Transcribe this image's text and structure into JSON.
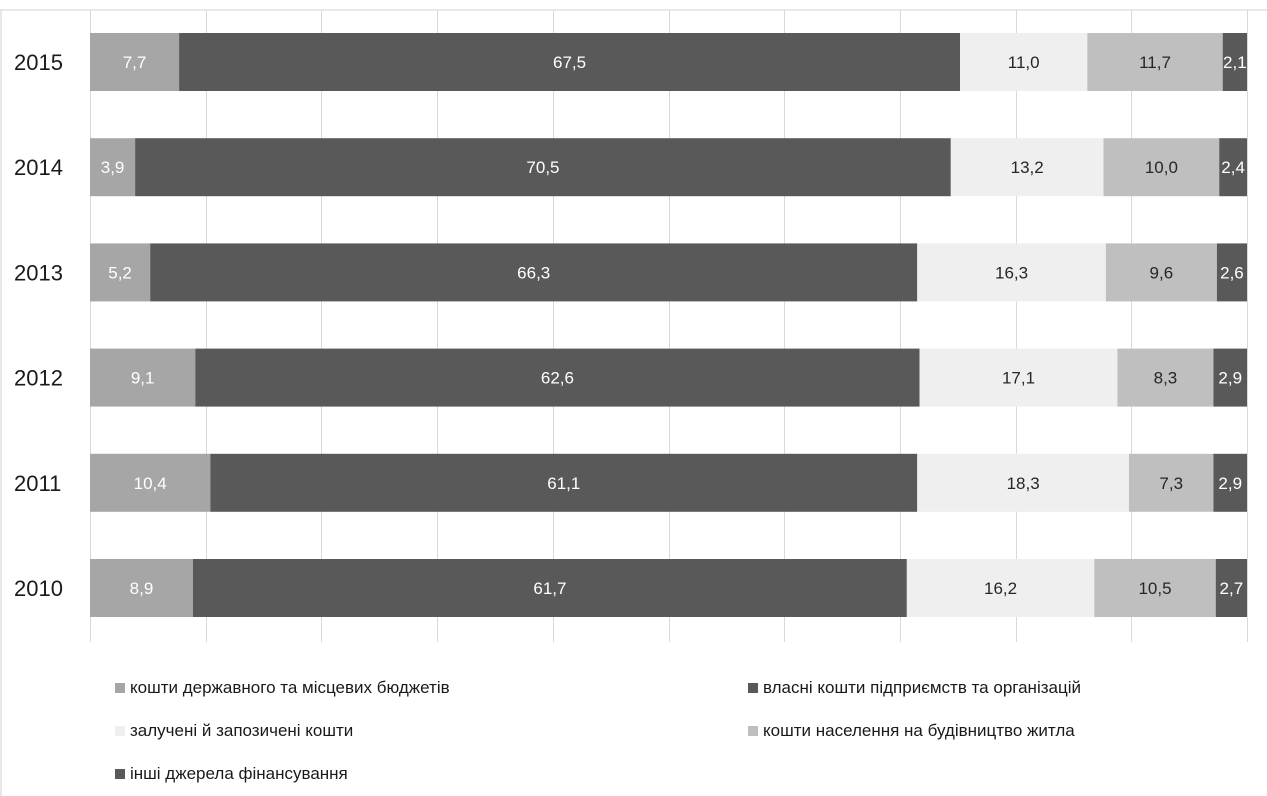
{
  "chart_data": {
    "type": "bar",
    "orientation": "horizontal",
    "stacked": true,
    "categories": [
      "2015",
      "2014",
      "2013",
      "2012",
      "2011",
      "2010"
    ],
    "series": [
      {
        "name": "кошти державного та місцевих бюджетів",
        "color": "#a6a6a6",
        "label_color": "#ffffff",
        "values": [
          7.7,
          3.9,
          5.2,
          9.1,
          10.4,
          8.9
        ],
        "labels": [
          "7,7",
          "3,9",
          "5,2",
          "9,1",
          "10,4",
          "8,9"
        ]
      },
      {
        "name": "власні кошти підприємств та організацій",
        "color": "#595959",
        "label_color": "#ffffff",
        "values": [
          67.5,
          70.5,
          66.3,
          62.6,
          61.1,
          61.7
        ],
        "labels": [
          "67,5",
          "70,5",
          "66,3",
          "62,6",
          "61,1",
          "61,7"
        ]
      },
      {
        "name": "залучені й запозичені кошти",
        "color": "#efefef",
        "label_color": "#262626",
        "values": [
          11.0,
          13.2,
          16.3,
          17.1,
          18.3,
          16.2
        ],
        "labels": [
          "11,0",
          "13,2",
          "16,3",
          "17,1",
          "18,3",
          "16,2"
        ]
      },
      {
        "name": "кошти населення на будівництво житла",
        "color": "#bfbfbf",
        "label_color": "#262626",
        "values": [
          11.7,
          10.0,
          9.6,
          8.3,
          7.3,
          10.5
        ],
        "labels": [
          "11,7",
          "10,0",
          "9,6",
          "8,3",
          "7,3",
          "10,5"
        ]
      },
      {
        "name": "інші джерела фінансування",
        "color": "#595959",
        "label_color": "#ffffff",
        "values": [
          2.1,
          2.4,
          2.6,
          2.9,
          2.9,
          2.7
        ],
        "labels": [
          "2,1",
          "2,4",
          "2,6",
          "2,9",
          "2,9",
          "2,7"
        ]
      }
    ],
    "xlim": [
      0,
      100
    ],
    "grid": true,
    "legend_position": "bottom"
  }
}
